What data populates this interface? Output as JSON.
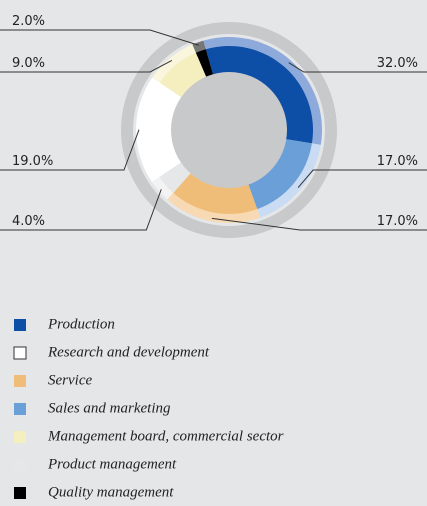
{
  "chart_data": {
    "type": "donut",
    "categories": [
      "Production",
      "Sales and marketing",
      "Service",
      "Product management",
      "Research and development",
      "Management board, commercial sector",
      "Quality management"
    ],
    "values": [
      32,
      17,
      17,
      4,
      19,
      9,
      2
    ],
    "value_labels": [
      "32.0%",
      "17.0%",
      "17.0%",
      "4.0%",
      "19.0%",
      "9.0%",
      "2.0%"
    ],
    "colors": [
      "#0d4ea6",
      "#6a9fd8",
      "#f0bd78",
      "#e6e7e8",
      "#ffffff",
      "#f5efbf",
      "#000000"
    ],
    "legend_order": [
      0,
      4,
      2,
      1,
      5,
      3,
      6
    ]
  }
}
